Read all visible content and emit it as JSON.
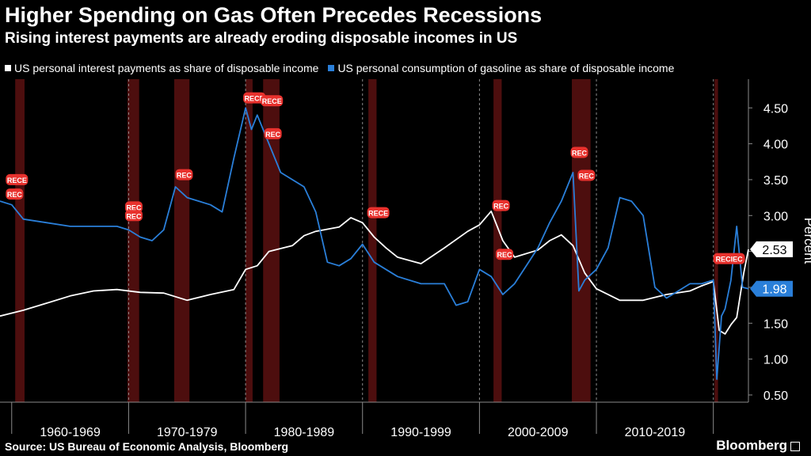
{
  "chart_data": {
    "type": "line",
    "title": "Higher Spending on Gas Often Precedes Recessions",
    "subtitle": "Rising interest payments are already eroding disposable incomes in US",
    "ylabel": "Percent",
    "ylim": [
      0.4,
      4.9
    ],
    "yticks": [
      "4.50",
      "4.00",
      "3.50",
      "3.00",
      "2.50",
      "2.00",
      "1.50",
      "1.00",
      "0.50"
    ],
    "xlim": [
      1959,
      2023
    ],
    "xticks": [
      "1960-1969",
      "1970-1979",
      "1980-1989",
      "1990-1999",
      "2000-2009",
      "2010-2019"
    ],
    "legend": "top",
    "grid": "dashed-vertical",
    "series": [
      {
        "name": "US personal interest payments as share of disposable income",
        "color": "#ffffff",
        "end_label": "2.53",
        "x": [
          1959,
          1961,
          1963,
          1965,
          1967,
          1969,
          1971,
          1973,
          1975,
          1977,
          1979,
          1980,
          1981,
          1982,
          1984,
          1985,
          1986,
          1988,
          1989,
          1990,
          1991,
          1992,
          1993,
          1995,
          1997,
          1999,
          2000,
          2001,
          2002,
          2003,
          2005,
          2006,
          2007,
          2008,
          2009,
          2010,
          2012,
          2014,
          2016,
          2018,
          2019,
          2020,
          2020.5,
          2021,
          2021.5,
          2022,
          2022.6,
          2023
        ],
        "y": [
          1.6,
          1.68,
          1.78,
          1.88,
          1.95,
          1.97,
          1.93,
          1.92,
          1.82,
          1.9,
          1.97,
          2.25,
          2.3,
          2.5,
          2.58,
          2.72,
          2.78,
          2.84,
          2.97,
          2.9,
          2.7,
          2.55,
          2.42,
          2.33,
          2.55,
          2.78,
          2.87,
          3.06,
          2.65,
          2.42,
          2.52,
          2.65,
          2.73,
          2.58,
          2.2,
          1.98,
          1.82,
          1.82,
          1.9,
          1.95,
          2.02,
          2.08,
          1.4,
          1.35,
          1.48,
          1.58,
          2.2,
          2.53
        ]
      },
      {
        "name": "US personal consumption of gasoline as share of disposable income",
        "color": "#2a7fd9",
        "end_label": "1.98",
        "x": [
          1959,
          1960,
          1961,
          1963,
          1965,
          1967,
          1969,
          1970,
          1971,
          1972,
          1973,
          1974,
          1975,
          1976,
          1977,
          1978,
          1979,
          1980,
          1980.5,
          1981,
          1982,
          1983,
          1985,
          1986,
          1987,
          1988,
          1989,
          1990,
          1991,
          1992,
          1993,
          1995,
          1997,
          1998,
          1999,
          2000,
          2001,
          2002,
          2003,
          2004,
          2005,
          2006,
          2007,
          2008,
          2008.5,
          2009,
          2010,
          2011,
          2012,
          2013,
          2014,
          2015,
          2016,
          2017,
          2018,
          2019,
          2020,
          2020.3,
          2020.7,
          2021,
          2021.5,
          2022,
          2022.5,
          2023
        ],
        "y": [
          3.2,
          3.15,
          2.95,
          2.9,
          2.85,
          2.85,
          2.85,
          2.8,
          2.7,
          2.65,
          2.8,
          3.4,
          3.25,
          3.2,
          3.15,
          3.05,
          3.8,
          4.5,
          4.2,
          4.4,
          4.0,
          3.6,
          3.4,
          3.05,
          2.35,
          2.3,
          2.4,
          2.6,
          2.35,
          2.25,
          2.15,
          2.05,
          2.05,
          1.75,
          1.8,
          2.25,
          2.15,
          1.9,
          2.05,
          2.3,
          2.55,
          2.9,
          3.2,
          3.6,
          1.95,
          2.1,
          2.25,
          2.55,
          3.25,
          3.2,
          3.0,
          2.0,
          1.85,
          1.95,
          2.05,
          2.05,
          2.1,
          0.72,
          1.6,
          1.7,
          2.1,
          2.85,
          2.0,
          1.98
        ]
      }
    ],
    "recessions": [
      [
        1960.3,
        1961.1
      ],
      [
        1969.9,
        1970.9
      ],
      [
        1973.9,
        1975.2
      ],
      [
        1980.0,
        1980.6
      ],
      [
        1981.5,
        1982.9
      ],
      [
        1990.5,
        1991.2
      ],
      [
        2001.2,
        2001.9
      ],
      [
        2007.9,
        2009.5
      ],
      [
        2020.1,
        2020.4
      ]
    ],
    "annotations": [
      {
        "text": "RECE",
        "x": 1959.7,
        "y": 3.5
      },
      {
        "text": "REC",
        "x": 1959.7,
        "y": 3.3
      },
      {
        "text": "REC",
        "x": 1969.9,
        "y": 3.12
      },
      {
        "text": "REC",
        "x": 1969.9,
        "y": 3.0
      },
      {
        "text": "REC",
        "x": 1974.2,
        "y": 3.57
      },
      {
        "text": "RECE",
        "x": 1980.0,
        "y": 4.64
      },
      {
        "text": "RECE",
        "x": 1981.5,
        "y": 4.6
      },
      {
        "text": "REC",
        "x": 1981.8,
        "y": 4.14
      },
      {
        "text": "RECE",
        "x": 1990.6,
        "y": 3.04
      },
      {
        "text": "REC",
        "x": 2001.3,
        "y": 3.14
      },
      {
        "text": "REC",
        "x": 2001.6,
        "y": 2.46
      },
      {
        "text": "REC",
        "x": 2008.0,
        "y": 3.88
      },
      {
        "text": "REC",
        "x": 2008.6,
        "y": 3.56
      },
      {
        "text": "RECIEC",
        "x": 2020.2,
        "y": 2.4
      }
    ]
  },
  "footer": {
    "source": "Source: US Bureau of Economic Analysis, Bloomberg",
    "brand": "Bloomberg"
  }
}
